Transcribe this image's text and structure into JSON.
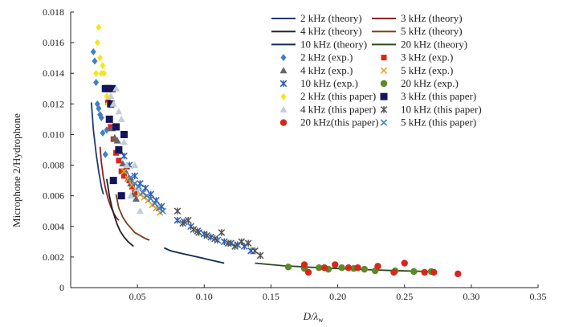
{
  "chart_data": {
    "type": "scatter",
    "title": "",
    "xlabel": "D/λ",
    "xlabel_sub": "w",
    "ylabel": "Microphone 2/Hydrophone",
    "xlim": [
      0,
      0.35
    ],
    "ylim": [
      0,
      0.018
    ],
    "xticks": [
      0.05,
      0.1,
      0.15,
      0.2,
      0.25,
      0.3,
      0.35
    ],
    "xtick_labels": [
      "0.05",
      "0.10",
      "0.15",
      "0.20",
      "0.25",
      "0.30",
      "0.35"
    ],
    "yticks": [
      0,
      0.002,
      0.004,
      0.006,
      0.008,
      0.01,
      0.012,
      0.014,
      0.016,
      0.018
    ],
    "ytick_labels": [
      "0",
      "0.002",
      "0.004",
      "0.006",
      "0.008",
      "0.010",
      "0.012",
      "0.014",
      "0.016",
      "0.018"
    ],
    "grid": false,
    "legend_position": "top-right",
    "series": [
      {
        "name": "2 kHz (theory)",
        "kind": "line",
        "color": "#1f3a6e",
        "x": [
          0.0155,
          0.017,
          0.019,
          0.021,
          0.023,
          0.0245
        ],
        "y": [
          0.0121,
          0.0103,
          0.0088,
          0.0076,
          0.0066,
          0.0061
        ]
      },
      {
        "name": "3 kHz (theory)",
        "kind": "line",
        "color": "#8b2323",
        "x": [
          0.022,
          0.023,
          0.0245,
          0.026,
          0.028,
          0.03,
          0.032,
          0.034,
          0.036
        ],
        "y": [
          0.0092,
          0.0082,
          0.0072,
          0.0065,
          0.0058,
          0.0053,
          0.0049,
          0.0046,
          0.0044
        ]
      },
      {
        "name": "4 kHz (theory)",
        "kind": "line",
        "color": "#222222",
        "x": [
          0.027,
          0.029,
          0.031,
          0.033,
          0.035,
          0.037,
          0.04,
          0.043,
          0.047
        ],
        "y": [
          0.0071,
          0.006,
          0.0052,
          0.0046,
          0.0041,
          0.0037,
          0.0033,
          0.003,
          0.0027
        ]
      },
      {
        "name": "5 kHz (theory)",
        "kind": "line",
        "color": "#7b3e1a",
        "x": [
          0.034,
          0.036,
          0.039,
          0.042,
          0.045,
          0.048,
          0.052,
          0.056,
          0.059
        ],
        "y": [
          0.0061,
          0.0052,
          0.0046,
          0.0042,
          0.0039,
          0.0036,
          0.0034,
          0.0032,
          0.0031
        ]
      },
      {
        "name": "10 kHz (theory)",
        "kind": "line",
        "color": "#0f2a55",
        "x": [
          0.07,
          0.075,
          0.08,
          0.085,
          0.09,
          0.095,
          0.1,
          0.105,
          0.11,
          0.115
        ],
        "y": [
          0.0026,
          0.0024,
          0.0023,
          0.0022,
          0.0021,
          0.002,
          0.0019,
          0.0018,
          0.0017,
          0.0016
        ]
      },
      {
        "name": "20 kHz (theory)",
        "kind": "line",
        "color": "#2f4a1f",
        "x": [
          0.138,
          0.15,
          0.16,
          0.17,
          0.18,
          0.2,
          0.22,
          0.24,
          0.26,
          0.272
        ],
        "y": [
          0.0016,
          0.0015,
          0.00142,
          0.00138,
          0.00133,
          0.00125,
          0.00118,
          0.00112,
          0.00107,
          0.00105
        ]
      },
      {
        "name": "2 kHz (exp.)",
        "kind": "scatter",
        "marker": "diamond",
        "color": "#3f7fc4",
        "x": [
          0.017,
          0.018,
          0.019,
          0.02,
          0.021,
          0.022,
          0.023,
          0.024,
          0.026,
          0.027
        ],
        "y": [
          0.0154,
          0.0148,
          0.0134,
          0.012,
          0.0117,
          0.0113,
          0.0111,
          0.0101,
          0.0087,
          0.0103
        ]
      },
      {
        "name": "3 kHz (exp.)",
        "kind": "scatter",
        "marker": "square-small",
        "color": "#d9261c",
        "x": [
          0.028,
          0.03,
          0.032,
          0.034,
          0.036,
          0.038,
          0.04,
          0.042,
          0.044,
          0.046,
          0.048
        ],
        "y": [
          0.0121,
          0.0105,
          0.0097,
          0.0088,
          0.0083,
          0.0076,
          0.0073,
          0.0079,
          0.007,
          0.0066,
          0.0062
        ]
      },
      {
        "name": "4 kHz (exp.)",
        "kind": "scatter",
        "marker": "triangle",
        "color": "#666666",
        "x": [
          0.031,
          0.033,
          0.035,
          0.037,
          0.039,
          0.041,
          0.043,
          0.045,
          0.047,
          0.049
        ],
        "y": [
          0.0104,
          0.0098,
          0.0096,
          0.0089,
          0.0081,
          0.0076,
          0.0071,
          0.0068,
          0.0061,
          0.0058
        ]
      },
      {
        "name": "5 kHz (exp.)",
        "kind": "scatter",
        "marker": "x",
        "color": "#f0a020",
        "x": [
          0.04,
          0.043,
          0.046,
          0.049,
          0.052,
          0.055,
          0.058,
          0.061,
          0.064,
          0.067
        ],
        "y": [
          0.0076,
          0.0071,
          0.0067,
          0.0064,
          0.0061,
          0.0059,
          0.0057,
          0.0054,
          0.0052,
          0.0049
        ]
      },
      {
        "name": "10 kHz (exp.)",
        "kind": "scatter",
        "marker": "star",
        "color": "#2a5db8",
        "x": [
          0.04,
          0.044,
          0.048,
          0.052,
          0.056,
          0.06,
          0.064,
          0.068,
          0.08,
          0.085,
          0.09,
          0.095,
          0.1,
          0.105,
          0.11,
          0.115,
          0.12,
          0.125,
          0.13,
          0.135
        ],
        "y": [
          0.0086,
          0.008,
          0.0073,
          0.0068,
          0.0065,
          0.0061,
          0.0057,
          0.0053,
          0.0044,
          0.0043,
          0.004,
          0.0037,
          0.0035,
          0.0033,
          0.0031,
          0.003,
          0.0029,
          0.0028,
          0.0027,
          0.0024
        ]
      },
      {
        "name": "20 kHz (exp.)",
        "kind": "scatter",
        "marker": "circle",
        "color": "#5a8a2a",
        "x": [
          0.163,
          0.175,
          0.186,
          0.193,
          0.203,
          0.212,
          0.22,
          0.228,
          0.243,
          0.257,
          0.27
        ],
        "y": [
          0.00135,
          0.00125,
          0.0013,
          0.0012,
          0.0013,
          0.00125,
          0.0012,
          0.0011,
          0.0011,
          0.00105,
          0.00105
        ]
      },
      {
        "name": "2 kHz (this paper)",
        "kind": "scatter",
        "marker": "diamond",
        "color": "#f5e61c",
        "x": [
          0.019,
          0.02,
          0.021,
          0.022,
          0.023,
          0.024,
          0.025,
          0.026,
          0.027,
          0.028
        ],
        "y": [
          0.014,
          0.016,
          0.017,
          0.015,
          0.014,
          0.0145,
          0.014,
          0.013,
          0.0125,
          0.012
        ]
      },
      {
        "name": "3 kHz (this paper)",
        "kind": "scatter",
        "marker": "square",
        "color": "#14145a",
        "x": [
          0.026,
          0.028,
          0.029,
          0.03,
          0.031,
          0.032,
          0.034,
          0.036,
          0.038,
          0.04
        ],
        "y": [
          0.013,
          0.013,
          0.011,
          0.012,
          0.013,
          0.007,
          0.0105,
          0.009,
          0.006,
          0.01
        ]
      },
      {
        "name": "4 kHz (this paper)",
        "kind": "scatter",
        "marker": "triangle",
        "color": "#c3ccd8",
        "x": [
          0.03,
          0.032,
          0.034,
          0.036,
          0.038,
          0.04,
          0.042,
          0.045,
          0.048,
          0.05,
          0.052
        ],
        "y": [
          0.0125,
          0.012,
          0.013,
          0.0115,
          0.011,
          0.0095,
          0.008,
          0.006,
          0.008,
          0.0065,
          0.005
        ]
      },
      {
        "name": "10 kHz (this paper)",
        "kind": "scatter",
        "marker": "star",
        "color": "#555555",
        "x": [
          0.08,
          0.084,
          0.088,
          0.092,
          0.096,
          0.102,
          0.108,
          0.113,
          0.118,
          0.123,
          0.128,
          0.133,
          0.138,
          0.142
        ],
        "y": [
          0.005,
          0.0042,
          0.0044,
          0.0038,
          0.0036,
          0.0034,
          0.0032,
          0.0036,
          0.0029,
          0.0027,
          0.003,
          0.0029,
          0.0024,
          0.0021
        ]
      },
      {
        "name": "20 kHz(this paper)",
        "kind": "scatter",
        "marker": "circle",
        "color": "#d9261c",
        "x": [
          0.175,
          0.178,
          0.19,
          0.198,
          0.208,
          0.215,
          0.23,
          0.242,
          0.25,
          0.265,
          0.272,
          0.29
        ],
        "y": [
          0.0015,
          0.001,
          0.0013,
          0.0015,
          0.0013,
          0.0013,
          0.0014,
          0.001,
          0.0016,
          0.001,
          0.001,
          0.0009
        ]
      },
      {
        "name": "5 kHz (this paper)",
        "kind": "scatter",
        "marker": "x",
        "color": "#3f7fc4",
        "x": [
          0.045,
          0.048,
          0.051,
          0.054,
          0.057,
          0.06,
          0.063,
          0.066,
          0.069
        ],
        "y": [
          0.0072,
          0.0068,
          0.0066,
          0.0062,
          0.006,
          0.0058,
          0.0055,
          0.0052,
          0.005
        ]
      }
    ],
    "legend_order": [
      [
        "2 kHz (theory)",
        "3 kHz (theory)"
      ],
      [
        "4 kHz (theory)",
        "5 kHz (theory)"
      ],
      [
        "10 kHz (theory)",
        "20 kHz (theory)"
      ],
      [
        "2 kHz (exp.)",
        "3 kHz (exp.)"
      ],
      [
        "4 kHz (exp.)",
        "5 kHz (exp.)"
      ],
      [
        "10 kHz (exp.)",
        "20 kHz (exp.)"
      ],
      [
        "2 kHz (this paper)",
        "3 kHz (this paper)"
      ],
      [
        "4 kHz (this paper)",
        "10 kHz (this paper)"
      ],
      [
        "20 kHz(this paper)",
        "5 kHz (this paper)"
      ]
    ]
  }
}
